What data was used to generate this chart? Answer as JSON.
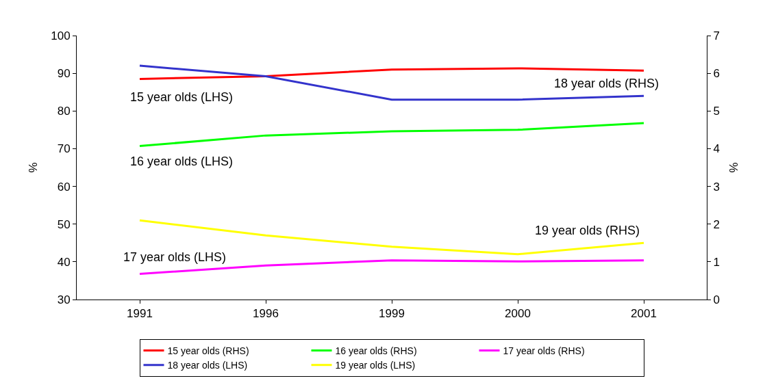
{
  "chart_data": {
    "type": "line",
    "ylabel": "%",
    "y2label": "%",
    "categories": [
      "1991",
      "1996",
      "1999",
      "2000",
      "2001"
    ],
    "series": [
      {
        "name": "15 year olds (RHS)",
        "color": "#ff0000",
        "values": [
          88.5,
          89.2,
          91,
          91.3,
          90.7
        ]
      },
      {
        "name": "16 year olds (RHS)",
        "color": "#00ff00",
        "values": [
          70.7,
          73.5,
          74.6,
          75,
          76.8
        ]
      },
      {
        "name": "17 year olds (RHS)",
        "color": "#ff00ff",
        "values": [
          36.8,
          39,
          40.4,
          40.1,
          40.4
        ]
      },
      {
        "name": "18 year olds (LHS)",
        "color": "#3333cc",
        "axis": "y2",
        "values": [
          6.2,
          5.92,
          5.3,
          5.3,
          5.4
        ]
      },
      {
        "name": "19 year olds (LHS)",
        "color": "#ffff00",
        "axis": "y2",
        "values": [
          2.1,
          1.7,
          1.4,
          1.2,
          1.5
        ]
      }
    ],
    "ylim": [
      30,
      100
    ],
    "yticks": [
      30,
      40,
      50,
      60,
      70,
      80,
      90,
      100
    ],
    "y2lim": [
      0,
      7
    ],
    "y2ticks": [
      0,
      1,
      2,
      3,
      4,
      5,
      6,
      7
    ],
    "annotations": [
      "15 year olds (LHS)",
      "16 year olds (LHS)",
      "17 year olds (LHS)",
      "18 year olds (RHS)",
      "19 year olds (RHS)"
    ],
    "legend": "bottom",
    "marker": "none",
    "line_style": "solid"
  }
}
